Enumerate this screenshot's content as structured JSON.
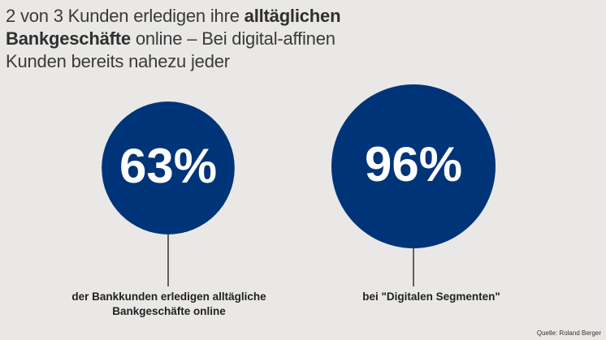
{
  "headline": {
    "part1": "2 von 3 Kunden erledigen ihre ",
    "bold1": "alltäglichen Bankgeschäfte",
    "part2": " online – Bei digital-affinen Kunden bereits nahezu jeder"
  },
  "chart_data": {
    "type": "bubble",
    "title": "2 von 3 Kunden erledigen ihre alltäglichen Bankgeschäfte online – Bei digital-affinen Kunden bereits nahezu jeder",
    "unit": "%",
    "categories": [
      "der Bankkunden erledigen alltägliche Bankgeschäfte online",
      "bei \"Digitalen Segmenten\""
    ],
    "values": [
      63,
      96
    ],
    "labels": [
      "63%",
      "96%"
    ],
    "colors": {
      "bubble": "#003478",
      "value_text": "#ffffff",
      "connector": "#333333"
    }
  },
  "captions": {
    "left": "der Bankkunden erledigen alltägliche Bankgeschäfte online",
    "right": "bei \"Digitalen Segmenten\""
  },
  "source": "Quelle: Roland Berger"
}
